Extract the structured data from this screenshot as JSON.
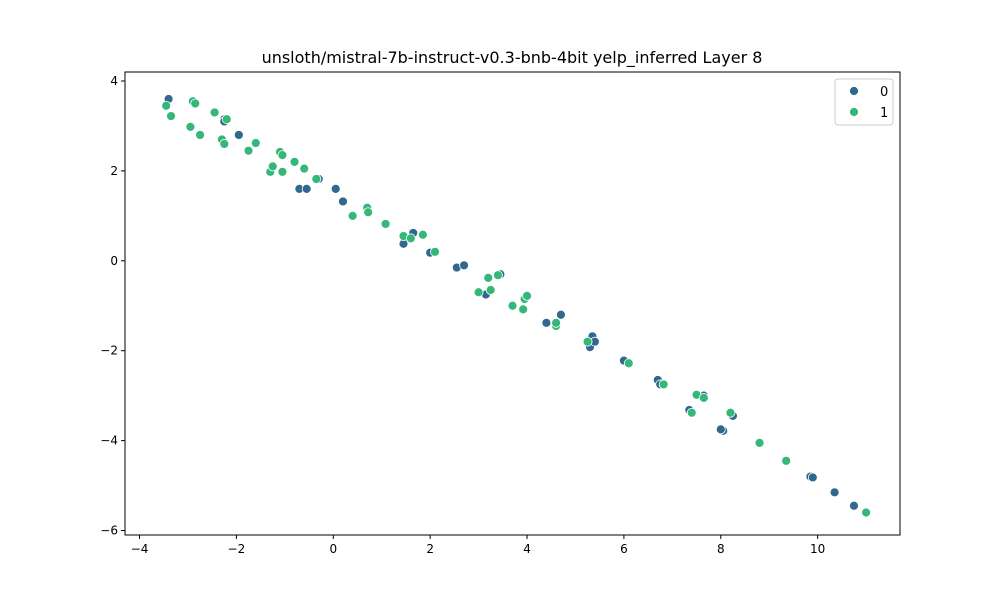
{
  "chart_data": {
    "type": "scatter",
    "title": "unsloth/mistral-7b-instruct-v0.3-bnb-4bit yelp_inferred Layer 8",
    "xlabel": "",
    "ylabel": "",
    "xlim": [
      -4.3,
      11.7
    ],
    "ylim": [
      -6.1,
      4.2
    ],
    "xticks": [
      -4,
      -2,
      0,
      2,
      4,
      6,
      8,
      10
    ],
    "yticks": [
      -6,
      -4,
      -2,
      0,
      2,
      4
    ],
    "grid": false,
    "legend": {
      "position": "top-right"
    },
    "series": [
      {
        "name": "0",
        "color": "#31688e",
        "points": [
          [
            -3.4,
            3.6
          ],
          [
            -2.25,
            3.15
          ],
          [
            -2.25,
            3.1
          ],
          [
            -1.95,
            2.8
          ],
          [
            -0.7,
            1.6
          ],
          [
            -0.55,
            1.6
          ],
          [
            -0.3,
            1.82
          ],
          [
            0.05,
            1.6
          ],
          [
            0.2,
            1.32
          ],
          [
            1.45,
            0.38
          ],
          [
            1.65,
            0.62
          ],
          [
            2.0,
            0.18
          ],
          [
            2.55,
            -0.15
          ],
          [
            2.7,
            -0.1
          ],
          [
            3.15,
            -0.75
          ],
          [
            3.45,
            -0.3
          ],
          [
            4.4,
            -1.38
          ],
          [
            4.7,
            -1.2
          ],
          [
            5.3,
            -1.92
          ],
          [
            5.35,
            -1.68
          ],
          [
            5.4,
            -1.8
          ],
          [
            6.0,
            -2.22
          ],
          [
            6.7,
            -2.65
          ],
          [
            6.75,
            -2.75
          ],
          [
            7.35,
            -3.32
          ],
          [
            7.65,
            -3.0
          ],
          [
            8.05,
            -3.78
          ],
          [
            8.0,
            -3.75
          ],
          [
            8.25,
            -3.45
          ],
          [
            9.85,
            -4.8
          ],
          [
            9.9,
            -4.82
          ],
          [
            10.35,
            -5.15
          ],
          [
            10.75,
            -5.45
          ]
        ]
      },
      {
        "name": "1",
        "color": "#35b779",
        "points": [
          [
            -3.45,
            3.45
          ],
          [
            -3.35,
            3.22
          ],
          [
            -2.95,
            2.98
          ],
          [
            -2.9,
            3.55
          ],
          [
            -2.85,
            3.5
          ],
          [
            -2.75,
            2.8
          ],
          [
            -2.45,
            3.3
          ],
          [
            -2.3,
            2.7
          ],
          [
            -2.25,
            2.6
          ],
          [
            -2.2,
            3.15
          ],
          [
            -1.75,
            2.45
          ],
          [
            -1.6,
            2.62
          ],
          [
            -1.3,
            1.98
          ],
          [
            -1.25,
            2.1
          ],
          [
            -1.1,
            2.42
          ],
          [
            -1.05,
            2.35
          ],
          [
            -1.05,
            1.98
          ],
          [
            -0.8,
            2.2
          ],
          [
            -0.6,
            2.05
          ],
          [
            -0.35,
            1.82
          ],
          [
            0.4,
            1.0
          ],
          [
            0.7,
            1.18
          ],
          [
            0.72,
            1.08
          ],
          [
            1.08,
            0.82
          ],
          [
            1.45,
            0.55
          ],
          [
            1.6,
            0.5
          ],
          [
            1.85,
            0.58
          ],
          [
            2.1,
            0.2
          ],
          [
            3.0,
            -0.7
          ],
          [
            3.2,
            -0.38
          ],
          [
            3.25,
            -0.65
          ],
          [
            3.4,
            -0.32
          ],
          [
            3.7,
            -1.0
          ],
          [
            3.92,
            -1.08
          ],
          [
            3.95,
            -0.85
          ],
          [
            4.0,
            -0.78
          ],
          [
            4.6,
            -1.45
          ],
          [
            4.6,
            -1.38
          ],
          [
            5.25,
            -1.8
          ],
          [
            6.1,
            -2.28
          ],
          [
            6.82,
            -2.75
          ],
          [
            7.5,
            -2.98
          ],
          [
            7.65,
            -3.05
          ],
          [
            7.4,
            -3.38
          ],
          [
            8.2,
            -3.38
          ],
          [
            8.8,
            -4.05
          ],
          [
            9.35,
            -4.45
          ],
          [
            11.0,
            -5.6
          ]
        ]
      }
    ]
  }
}
